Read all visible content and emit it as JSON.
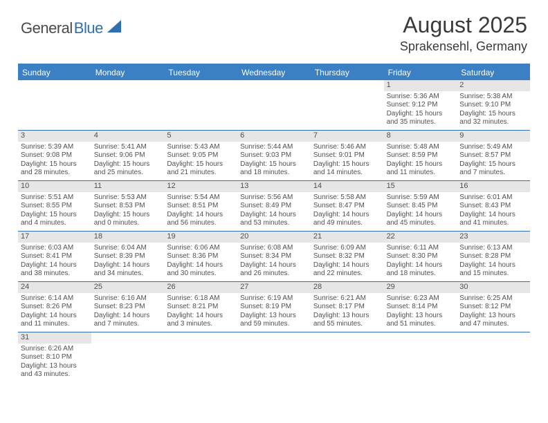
{
  "logo": {
    "general": "General",
    "blue": "Blue"
  },
  "title": "August 2025",
  "location": "Sprakensehl, Germany",
  "colors": {
    "header_bg": "#3b7fc4",
    "header_text": "#ffffff",
    "border": "#2f6fb0",
    "daynum_bg": "#e6e6e6",
    "text": "#505050",
    "logo_blue": "#2f6fb0",
    "logo_dark": "#4a4a4a"
  },
  "dow": [
    "Sunday",
    "Monday",
    "Tuesday",
    "Wednesday",
    "Thursday",
    "Friday",
    "Saturday"
  ],
  "weeks": [
    [
      {
        "n": "",
        "l1": "",
        "l2": "",
        "l3": "",
        "l4": ""
      },
      {
        "n": "",
        "l1": "",
        "l2": "",
        "l3": "",
        "l4": ""
      },
      {
        "n": "",
        "l1": "",
        "l2": "",
        "l3": "",
        "l4": ""
      },
      {
        "n": "",
        "l1": "",
        "l2": "",
        "l3": "",
        "l4": ""
      },
      {
        "n": "",
        "l1": "",
        "l2": "",
        "l3": "",
        "l4": ""
      },
      {
        "n": "1",
        "l1": "Sunrise: 5:36 AM",
        "l2": "Sunset: 9:12 PM",
        "l3": "Daylight: 15 hours",
        "l4": "and 35 minutes."
      },
      {
        "n": "2",
        "l1": "Sunrise: 5:38 AM",
        "l2": "Sunset: 9:10 PM",
        "l3": "Daylight: 15 hours",
        "l4": "and 32 minutes."
      }
    ],
    [
      {
        "n": "3",
        "l1": "Sunrise: 5:39 AM",
        "l2": "Sunset: 9:08 PM",
        "l3": "Daylight: 15 hours",
        "l4": "and 28 minutes."
      },
      {
        "n": "4",
        "l1": "Sunrise: 5:41 AM",
        "l2": "Sunset: 9:06 PM",
        "l3": "Daylight: 15 hours",
        "l4": "and 25 minutes."
      },
      {
        "n": "5",
        "l1": "Sunrise: 5:43 AM",
        "l2": "Sunset: 9:05 PM",
        "l3": "Daylight: 15 hours",
        "l4": "and 21 minutes."
      },
      {
        "n": "6",
        "l1": "Sunrise: 5:44 AM",
        "l2": "Sunset: 9:03 PM",
        "l3": "Daylight: 15 hours",
        "l4": "and 18 minutes."
      },
      {
        "n": "7",
        "l1": "Sunrise: 5:46 AM",
        "l2": "Sunset: 9:01 PM",
        "l3": "Daylight: 15 hours",
        "l4": "and 14 minutes."
      },
      {
        "n": "8",
        "l1": "Sunrise: 5:48 AM",
        "l2": "Sunset: 8:59 PM",
        "l3": "Daylight: 15 hours",
        "l4": "and 11 minutes."
      },
      {
        "n": "9",
        "l1": "Sunrise: 5:49 AM",
        "l2": "Sunset: 8:57 PM",
        "l3": "Daylight: 15 hours",
        "l4": "and 7 minutes."
      }
    ],
    [
      {
        "n": "10",
        "l1": "Sunrise: 5:51 AM",
        "l2": "Sunset: 8:55 PM",
        "l3": "Daylight: 15 hours",
        "l4": "and 4 minutes."
      },
      {
        "n": "11",
        "l1": "Sunrise: 5:53 AM",
        "l2": "Sunset: 8:53 PM",
        "l3": "Daylight: 15 hours",
        "l4": "and 0 minutes."
      },
      {
        "n": "12",
        "l1": "Sunrise: 5:54 AM",
        "l2": "Sunset: 8:51 PM",
        "l3": "Daylight: 14 hours",
        "l4": "and 56 minutes."
      },
      {
        "n": "13",
        "l1": "Sunrise: 5:56 AM",
        "l2": "Sunset: 8:49 PM",
        "l3": "Daylight: 14 hours",
        "l4": "and 53 minutes."
      },
      {
        "n": "14",
        "l1": "Sunrise: 5:58 AM",
        "l2": "Sunset: 8:47 PM",
        "l3": "Daylight: 14 hours",
        "l4": "and 49 minutes."
      },
      {
        "n": "15",
        "l1": "Sunrise: 5:59 AM",
        "l2": "Sunset: 8:45 PM",
        "l3": "Daylight: 14 hours",
        "l4": "and 45 minutes."
      },
      {
        "n": "16",
        "l1": "Sunrise: 6:01 AM",
        "l2": "Sunset: 8:43 PM",
        "l3": "Daylight: 14 hours",
        "l4": "and 41 minutes."
      }
    ],
    [
      {
        "n": "17",
        "l1": "Sunrise: 6:03 AM",
        "l2": "Sunset: 8:41 PM",
        "l3": "Daylight: 14 hours",
        "l4": "and 38 minutes."
      },
      {
        "n": "18",
        "l1": "Sunrise: 6:04 AM",
        "l2": "Sunset: 8:39 PM",
        "l3": "Daylight: 14 hours",
        "l4": "and 34 minutes."
      },
      {
        "n": "19",
        "l1": "Sunrise: 6:06 AM",
        "l2": "Sunset: 8:36 PM",
        "l3": "Daylight: 14 hours",
        "l4": "and 30 minutes."
      },
      {
        "n": "20",
        "l1": "Sunrise: 6:08 AM",
        "l2": "Sunset: 8:34 PM",
        "l3": "Daylight: 14 hours",
        "l4": "and 26 minutes."
      },
      {
        "n": "21",
        "l1": "Sunrise: 6:09 AM",
        "l2": "Sunset: 8:32 PM",
        "l3": "Daylight: 14 hours",
        "l4": "and 22 minutes."
      },
      {
        "n": "22",
        "l1": "Sunrise: 6:11 AM",
        "l2": "Sunset: 8:30 PM",
        "l3": "Daylight: 14 hours",
        "l4": "and 18 minutes."
      },
      {
        "n": "23",
        "l1": "Sunrise: 6:13 AM",
        "l2": "Sunset: 8:28 PM",
        "l3": "Daylight: 14 hours",
        "l4": "and 15 minutes."
      }
    ],
    [
      {
        "n": "24",
        "l1": "Sunrise: 6:14 AM",
        "l2": "Sunset: 8:26 PM",
        "l3": "Daylight: 14 hours",
        "l4": "and 11 minutes."
      },
      {
        "n": "25",
        "l1": "Sunrise: 6:16 AM",
        "l2": "Sunset: 8:23 PM",
        "l3": "Daylight: 14 hours",
        "l4": "and 7 minutes."
      },
      {
        "n": "26",
        "l1": "Sunrise: 6:18 AM",
        "l2": "Sunset: 8:21 PM",
        "l3": "Daylight: 14 hours",
        "l4": "and 3 minutes."
      },
      {
        "n": "27",
        "l1": "Sunrise: 6:19 AM",
        "l2": "Sunset: 8:19 PM",
        "l3": "Daylight: 13 hours",
        "l4": "and 59 minutes."
      },
      {
        "n": "28",
        "l1": "Sunrise: 6:21 AM",
        "l2": "Sunset: 8:17 PM",
        "l3": "Daylight: 13 hours",
        "l4": "and 55 minutes."
      },
      {
        "n": "29",
        "l1": "Sunrise: 6:23 AM",
        "l2": "Sunset: 8:14 PM",
        "l3": "Daylight: 13 hours",
        "l4": "and 51 minutes."
      },
      {
        "n": "30",
        "l1": "Sunrise: 6:25 AM",
        "l2": "Sunset: 8:12 PM",
        "l3": "Daylight: 13 hours",
        "l4": "and 47 minutes."
      }
    ],
    [
      {
        "n": "31",
        "l1": "Sunrise: 6:26 AM",
        "l2": "Sunset: 8:10 PM",
        "l3": "Daylight: 13 hours",
        "l4": "and 43 minutes."
      },
      {
        "n": "",
        "l1": "",
        "l2": "",
        "l3": "",
        "l4": ""
      },
      {
        "n": "",
        "l1": "",
        "l2": "",
        "l3": "",
        "l4": ""
      },
      {
        "n": "",
        "l1": "",
        "l2": "",
        "l3": "",
        "l4": ""
      },
      {
        "n": "",
        "l1": "",
        "l2": "",
        "l3": "",
        "l4": ""
      },
      {
        "n": "",
        "l1": "",
        "l2": "",
        "l3": "",
        "l4": ""
      },
      {
        "n": "",
        "l1": "",
        "l2": "",
        "l3": "",
        "l4": ""
      }
    ]
  ]
}
